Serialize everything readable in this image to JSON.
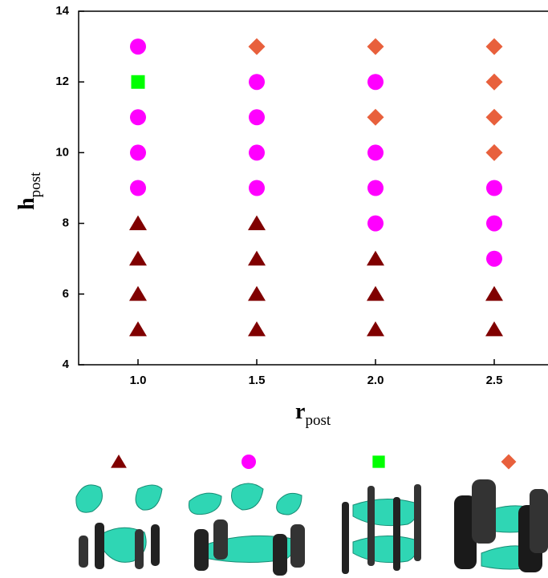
{
  "chart_data": {
    "type": "scatter",
    "xlabel": "r",
    "xlabel_sub": "post",
    "ylabel": "h",
    "ylabel_sub": "post",
    "xlim": [
      0.75,
      2.75
    ],
    "ylim": [
      4,
      14
    ],
    "xticks": [
      {
        "value": 1,
        "label": "1.0"
      },
      {
        "value": 1.5,
        "label": "1.5"
      },
      {
        "value": 2,
        "label": "2.0"
      },
      {
        "value": 2.5,
        "label": "2.5"
      }
    ],
    "yticks": [
      4,
      6,
      8,
      10,
      12,
      14
    ],
    "series": [
      {
        "marker": "triangle",
        "color": "#800000",
        "x": [
          1,
          1,
          1,
          1,
          1.5,
          1.5,
          1.5,
          1.5,
          2,
          2,
          2,
          2.5,
          2.5
        ],
        "y": [
          5,
          6,
          7,
          8,
          5,
          6,
          7,
          8,
          5,
          6,
          7,
          5,
          6
        ]
      },
      {
        "marker": "circle",
        "color": "#ff00ff",
        "x": [
          1,
          1,
          1,
          1,
          1.5,
          1.5,
          1.5,
          1.5,
          2,
          2,
          2,
          2,
          2.5,
          2.5,
          2.5
        ],
        "y": [
          9,
          10,
          11,
          13,
          9,
          10,
          11,
          12,
          8,
          9,
          10,
          12,
          7,
          8,
          9
        ]
      },
      {
        "marker": "square",
        "color": "#00ff00",
        "x": [
          1
        ],
        "y": [
          12
        ]
      },
      {
        "marker": "diamond",
        "color": "#e8603c",
        "x": [
          1.5,
          2,
          2,
          2.5,
          2.5,
          2.5,
          2.5
        ],
        "y": [
          13,
          11,
          13,
          10,
          11,
          12,
          13
        ]
      }
    ]
  }
}
